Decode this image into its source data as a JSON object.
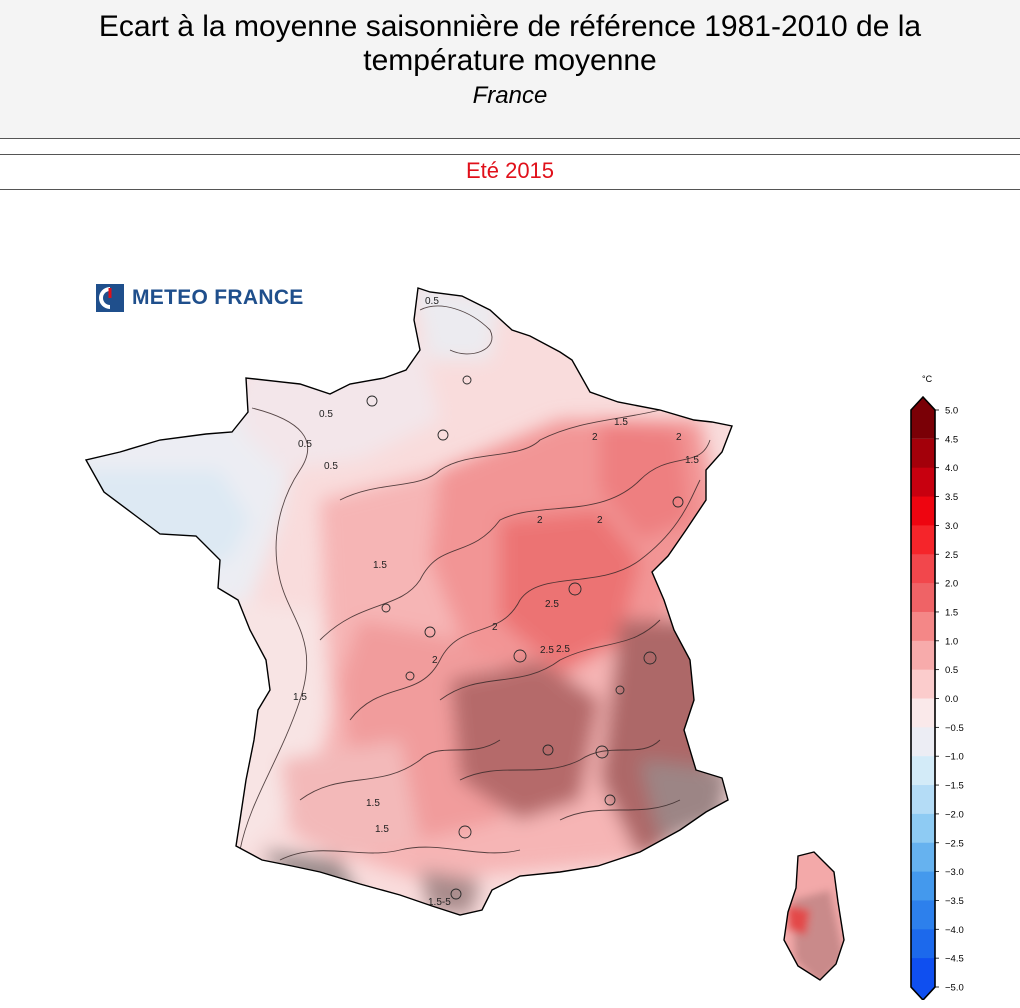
{
  "header": {
    "title": "Ecart à la moyenne saisonnière de référence 1981-2010 de la température moyenne",
    "region": "France"
  },
  "season": "Eté 2015",
  "logo": {
    "text": "METEO FRANCE"
  },
  "colorbar": {
    "unit": "°C",
    "ticks": [
      "5.0",
      "4.5",
      "4.0",
      "3.5",
      "3.0",
      "2.5",
      "2.0",
      "1.5",
      "1.0",
      "0.5",
      "0.0",
      "−0.5",
      "−1.0",
      "−1.5",
      "−2.0",
      "−2.5",
      "−3.0",
      "−3.5",
      "−4.0",
      "−4.5",
      "−5.0"
    ],
    "colors": [
      "#7a0006",
      "#a3000a",
      "#c8000f",
      "#ee0510",
      "#f5252a",
      "#f2474c",
      "#ef6366",
      "#f48787",
      "#f7abab",
      "#fbcccc",
      "#fae9ea",
      "#ecedf4",
      "#d3ebf8",
      "#b4dcf6",
      "#8ecbf3",
      "#66b2ef",
      "#4499ed",
      "#2d80ec",
      "#1c69ec",
      "#0f4ff0"
    ]
  },
  "contour_labels": [
    "0.5",
    "0.5",
    "0.5",
    "0.5",
    "1.5",
    "1.5",
    "1.5",
    "1.5",
    "1.5",
    "2",
    "2",
    "2",
    "2",
    "2",
    "2",
    "2.5",
    "2.5",
    "2.5",
    "1.5",
    "1.5-5"
  ]
}
